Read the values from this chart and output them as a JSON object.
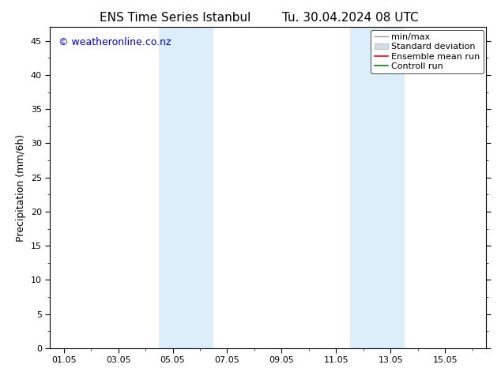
{
  "title_left": "ENS Time Series Istanbul",
  "title_right": "Tu. 30.04.2024 08 UTC",
  "ylabel": "Precipitation (mm/6h)",
  "watermark": "© weatheronline.co.nz",
  "ylim": [
    0,
    47
  ],
  "yticks": [
    0,
    5,
    10,
    15,
    20,
    25,
    30,
    35,
    40,
    45
  ],
  "xtick_labels": [
    "01.05",
    "03.05",
    "05.05",
    "07.05",
    "09.05",
    "11.05",
    "13.05",
    "15.05"
  ],
  "xtick_positions": [
    0,
    2,
    4,
    6,
    8,
    10,
    12,
    14
  ],
  "xlim": [
    -0.5,
    15.5
  ],
  "shaded_bands": [
    {
      "x_start": 3.5,
      "x_end": 5.5
    },
    {
      "x_start": 10.5,
      "x_end": 12.5
    }
  ],
  "shade_color": "#dceef9",
  "background_color": "#ffffff",
  "plot_bg_color": "#ffffff",
  "legend_entries": [
    "min/max",
    "Standard deviation",
    "Ensemble mean run",
    "Controll run"
  ],
  "legend_colors_line": [
    "#999999",
    "#bbbbbb",
    "#ff0000",
    "#008000"
  ],
  "watermark_color": "#0000cc",
  "title_fontsize": 11,
  "ylabel_fontsize": 9,
  "tick_fontsize": 8,
  "legend_fontsize": 8,
  "watermark_fontsize": 9
}
